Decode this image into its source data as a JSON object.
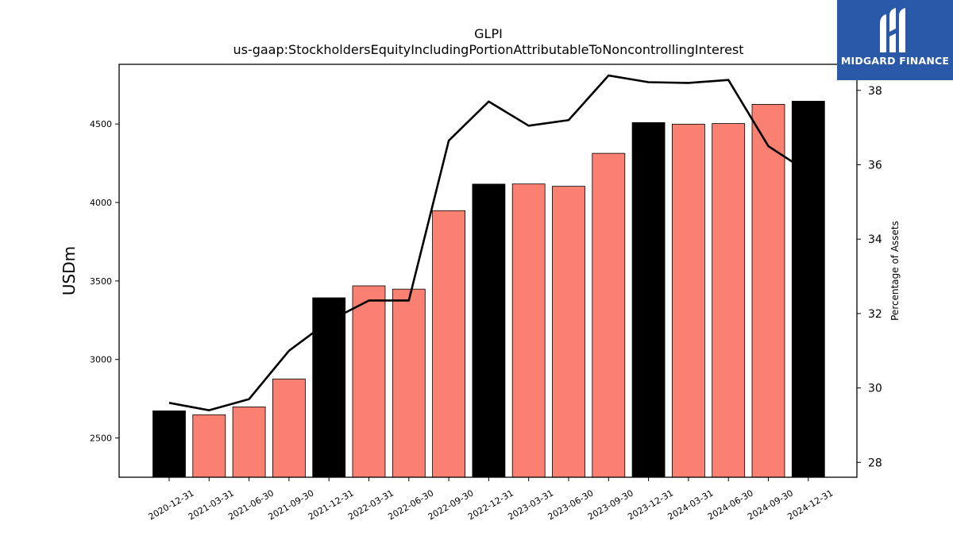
{
  "chart_data": {
    "type": "bar",
    "title": "GLPI",
    "subtitle": "us-gaap:StockholdersEquityIncludingPortionAttributableToNoncontrollingInterest",
    "ylabel": "USDm",
    "y2label": "Percentage of Assets",
    "ylim": [
      2250,
      4880
    ],
    "y2lim": [
      27.6,
      38.7
    ],
    "yticks": [
      2500,
      3000,
      3500,
      4000,
      4500
    ],
    "y2ticks": [
      28,
      30,
      32,
      34,
      36,
      38
    ],
    "categories": [
      "2020-12-31",
      "2021-03-31",
      "2021-06-30",
      "2021-09-30",
      "2021-12-31",
      "2022-03-31",
      "2022-06-30",
      "2022-09-30",
      "2022-12-31",
      "2023-03-31",
      "2023-06-30",
      "2023-09-30",
      "2023-12-31",
      "2024-03-31",
      "2024-06-30",
      "2024-09-30",
      "2024-12-31"
    ],
    "series": [
      {
        "type": "bar",
        "values": [
          2673,
          2648,
          2698,
          2876,
          3393,
          3469,
          3448,
          3948,
          4117,
          4118,
          4103,
          4313,
          4509,
          4499,
          4503,
          4625,
          4645
        ],
        "colors": [
          "#000000",
          "#fa8072",
          "#fa8072",
          "#fa8072",
          "#000000",
          "#fa8072",
          "#fa8072",
          "#fa8072",
          "#000000",
          "#fa8072",
          "#fa8072",
          "#fa8072",
          "#000000",
          "#fa8072",
          "#fa8072",
          "#fa8072",
          "#000000"
        ]
      },
      {
        "type": "line",
        "axis": "right",
        "values": [
          29.6,
          29.4,
          29.7,
          31.0,
          31.8,
          32.35,
          32.35,
          36.65,
          37.7,
          37.05,
          37.2,
          38.4,
          38.22,
          38.2,
          38.28,
          36.5,
          35.8
        ],
        "color": "#000000"
      }
    ]
  },
  "branding": {
    "logo_text": "MIDGARD FINANCE",
    "logo_color": "#2a59a8"
  }
}
